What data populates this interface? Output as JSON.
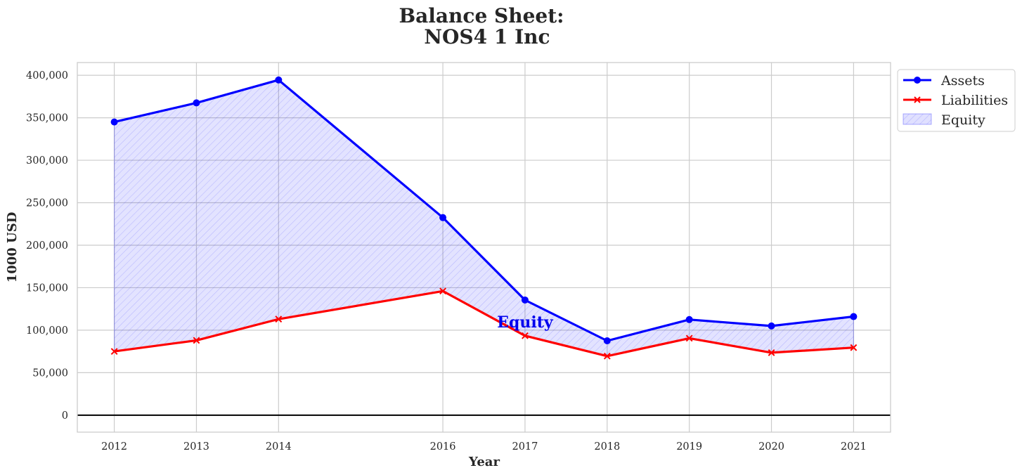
{
  "chart_data": {
    "type": "line",
    "title_line1": "Balance Sheet:",
    "title_line2": "NOS4 1 Inc",
    "xlabel": "Year",
    "ylabel": "1000 USD",
    "x": [
      2012,
      2013,
      2014,
      2016,
      2017,
      2018,
      2019,
      2020,
      2021
    ],
    "series": [
      {
        "name": "Assets",
        "color": "#0000ff",
        "marker": "circle",
        "values": [
          345000,
          367500,
          394500,
          232500,
          135500,
          87500,
          112500,
          105000,
          116000
        ]
      },
      {
        "name": "Liabilities",
        "color": "#ff0000",
        "marker": "x",
        "values": [
          75000,
          88000,
          113000,
          146000,
          93500,
          69500,
          90500,
          73500,
          79500
        ]
      }
    ],
    "fill": {
      "name": "Equity",
      "between": [
        "Assets",
        "Liabilities"
      ],
      "color": "#0000ff"
    },
    "annotation": {
      "text": "Equity",
      "x": 2017,
      "y": 110000
    },
    "ylim": [
      -20000,
      415000
    ],
    "xlim": [
      2011.55,
      2021.45
    ],
    "yticks": [
      0,
      50000,
      100000,
      150000,
      200000,
      250000,
      300000,
      350000,
      400000
    ],
    "ytick_labels": [
      "0",
      "50,000",
      "100,000",
      "150,000",
      "200,000",
      "250,000",
      "300,000",
      "350,000",
      "400,000"
    ],
    "xtick_labels": [
      "2012",
      "2013",
      "2014",
      "2016",
      "2017",
      "2018",
      "2019",
      "2020",
      "2021"
    ],
    "grid": true,
    "zero_line": true,
    "legend_position": "upper-right-outside"
  }
}
